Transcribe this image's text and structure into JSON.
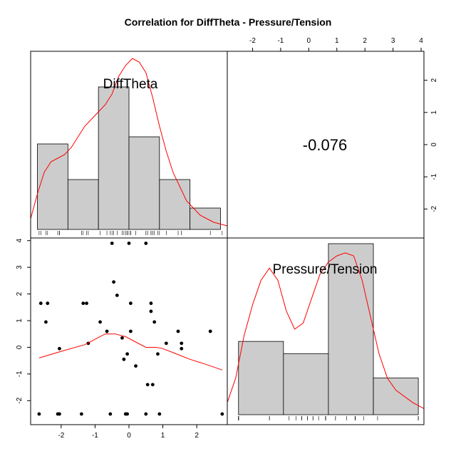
{
  "chart_data": {
    "type": "pairs",
    "title": "Correlation  for DiffTheta - Pressure/Tension",
    "variables": [
      "DiffTheta",
      "Pressure/Tension"
    ],
    "correlation_text": "-0.076",
    "colors": {
      "bar_fill": "#cccccc",
      "density": "#ff0000",
      "smooth": "#ff0000",
      "point": "#000000"
    },
    "diffTheta": {
      "axis_range": [
        -2.9,
        2.9
      ],
      "axis_ticks": [
        -2,
        -1,
        0,
        1,
        2
      ],
      "histogram": {
        "breaks": [
          -2.7,
          -1.8,
          -0.9,
          0.0,
          0.9,
          1.8,
          2.7
        ],
        "heights": [
          0.24,
          0.14,
          0.4,
          0.26,
          0.14,
          0.06
        ]
      },
      "density_points": [
        [
          -2.9,
          0.03
        ],
        [
          -2.7,
          0.1
        ],
        [
          -2.5,
          0.16
        ],
        [
          -2.3,
          0.19
        ],
        [
          -2.1,
          0.2
        ],
        [
          -1.9,
          0.21
        ],
        [
          -1.7,
          0.23
        ],
        [
          -1.5,
          0.26
        ],
        [
          -1.3,
          0.29
        ],
        [
          -1.1,
          0.31
        ],
        [
          -0.9,
          0.33
        ],
        [
          -0.7,
          0.35
        ],
        [
          -0.5,
          0.38
        ],
        [
          -0.3,
          0.43
        ],
        [
          -0.1,
          0.46
        ],
        [
          0.1,
          0.48
        ],
        [
          0.3,
          0.47
        ],
        [
          0.5,
          0.44
        ],
        [
          0.7,
          0.37
        ],
        [
          0.9,
          0.29
        ],
        [
          1.1,
          0.22
        ],
        [
          1.3,
          0.16
        ],
        [
          1.5,
          0.12
        ],
        [
          1.7,
          0.08
        ],
        [
          1.9,
          0.06
        ],
        [
          2.1,
          0.04
        ],
        [
          2.3,
          0.03
        ],
        [
          2.5,
          0.02
        ],
        [
          2.7,
          0.015
        ],
        [
          2.9,
          0.01
        ]
      ]
    },
    "pressureTension": {
      "axis_range": [
        -2.9,
        4.1
      ],
      "axis_ticks": [
        -2,
        -1,
        0,
        1,
        2,
        3,
        4
      ],
      "left_axis_ticks": [
        -2,
        -1,
        0,
        1,
        2,
        3,
        4
      ],
      "histogram": {
        "breaks": [
          -2.5,
          -0.9,
          0.7,
          2.3,
          3.9
        ],
        "heights": [
          0.12,
          0.1,
          0.28,
          0.06
        ]
      },
      "density_points": [
        [
          -2.9,
          0.02
        ],
        [
          -2.6,
          0.06
        ],
        [
          -2.3,
          0.13
        ],
        [
          -2.0,
          0.18
        ],
        [
          -1.7,
          0.22
        ],
        [
          -1.4,
          0.24
        ],
        [
          -1.1,
          0.22
        ],
        [
          -0.8,
          0.17
        ],
        [
          -0.5,
          0.14
        ],
        [
          -0.2,
          0.15
        ],
        [
          0.1,
          0.19
        ],
        [
          0.4,
          0.23
        ],
        [
          0.7,
          0.25
        ],
        [
          1.0,
          0.26
        ],
        [
          1.3,
          0.265
        ],
        [
          1.6,
          0.26
        ],
        [
          1.9,
          0.22
        ],
        [
          2.2,
          0.16
        ],
        [
          2.5,
          0.1
        ],
        [
          2.8,
          0.06
        ],
        [
          3.1,
          0.04
        ],
        [
          3.4,
          0.03
        ],
        [
          3.7,
          0.02
        ],
        [
          4.1,
          0.01
        ]
      ]
    },
    "scatter_points": [
      [
        -2.6,
        1.65
      ],
      [
        -2.4,
        1.65
      ],
      [
        -2.45,
        0.95
      ],
      [
        -2.05,
        -0.05
      ],
      [
        -1.25,
        1.65
      ],
      [
        -1.35,
        1.65
      ],
      [
        -1.2,
        0.15
      ],
      [
        -0.85,
        0.95
      ],
      [
        -0.65,
        0.6
      ],
      [
        -0.45,
        2.45
      ],
      [
        -0.35,
        1.95
      ],
      [
        -0.2,
        0.35
      ],
      [
        -0.15,
        -0.45
      ],
      [
        -0.05,
        -0.25
      ],
      [
        0.05,
        1.65
      ],
      [
        0.05,
        0.6
      ],
      [
        0.2,
        -0.7
      ],
      [
        0.65,
        1.65
      ],
      [
        0.65,
        1.35
      ],
      [
        0.75,
        0.95
      ],
      [
        0.85,
        -0.25
      ],
      [
        1.1,
        0.15
      ],
      [
        1.45,
        0.6
      ],
      [
        1.55,
        0.15
      ],
      [
        1.55,
        -0.05
      ],
      [
        2.4,
        0.6
      ],
      [
        0.55,
        -1.4
      ],
      [
        0.7,
        -1.4
      ],
      [
        -0.5,
        3.9
      ],
      [
        0.0,
        3.9
      ],
      [
        0.5,
        3.9
      ],
      [
        -2.65,
        -2.5
      ],
      [
        -2.1,
        -2.5
      ],
      [
        -2.05,
        -2.5
      ],
      [
        -1.4,
        -2.5
      ],
      [
        -0.55,
        -2.5
      ],
      [
        -0.1,
        -2.5
      ],
      [
        -0.05,
        -2.5
      ],
      [
        0.5,
        -2.5
      ],
      [
        0.9,
        -2.5
      ],
      [
        2.75,
        -2.5
      ]
    ],
    "smooth_line": [
      [
        -2.65,
        -0.4
      ],
      [
        -2.0,
        -0.15
      ],
      [
        -1.3,
        0.1
      ],
      [
        -1.0,
        0.3
      ],
      [
        -0.7,
        0.5
      ],
      [
        -0.4,
        0.5
      ],
      [
        -0.1,
        0.4
      ],
      [
        0.2,
        0.2
      ],
      [
        0.5,
        0.0
      ],
      [
        0.8,
        0.0
      ],
      [
        1.0,
        -0.05
      ],
      [
        1.3,
        -0.2
      ],
      [
        1.8,
        -0.45
      ],
      [
        2.3,
        -0.65
      ],
      [
        2.75,
        -0.85
      ]
    ]
  }
}
